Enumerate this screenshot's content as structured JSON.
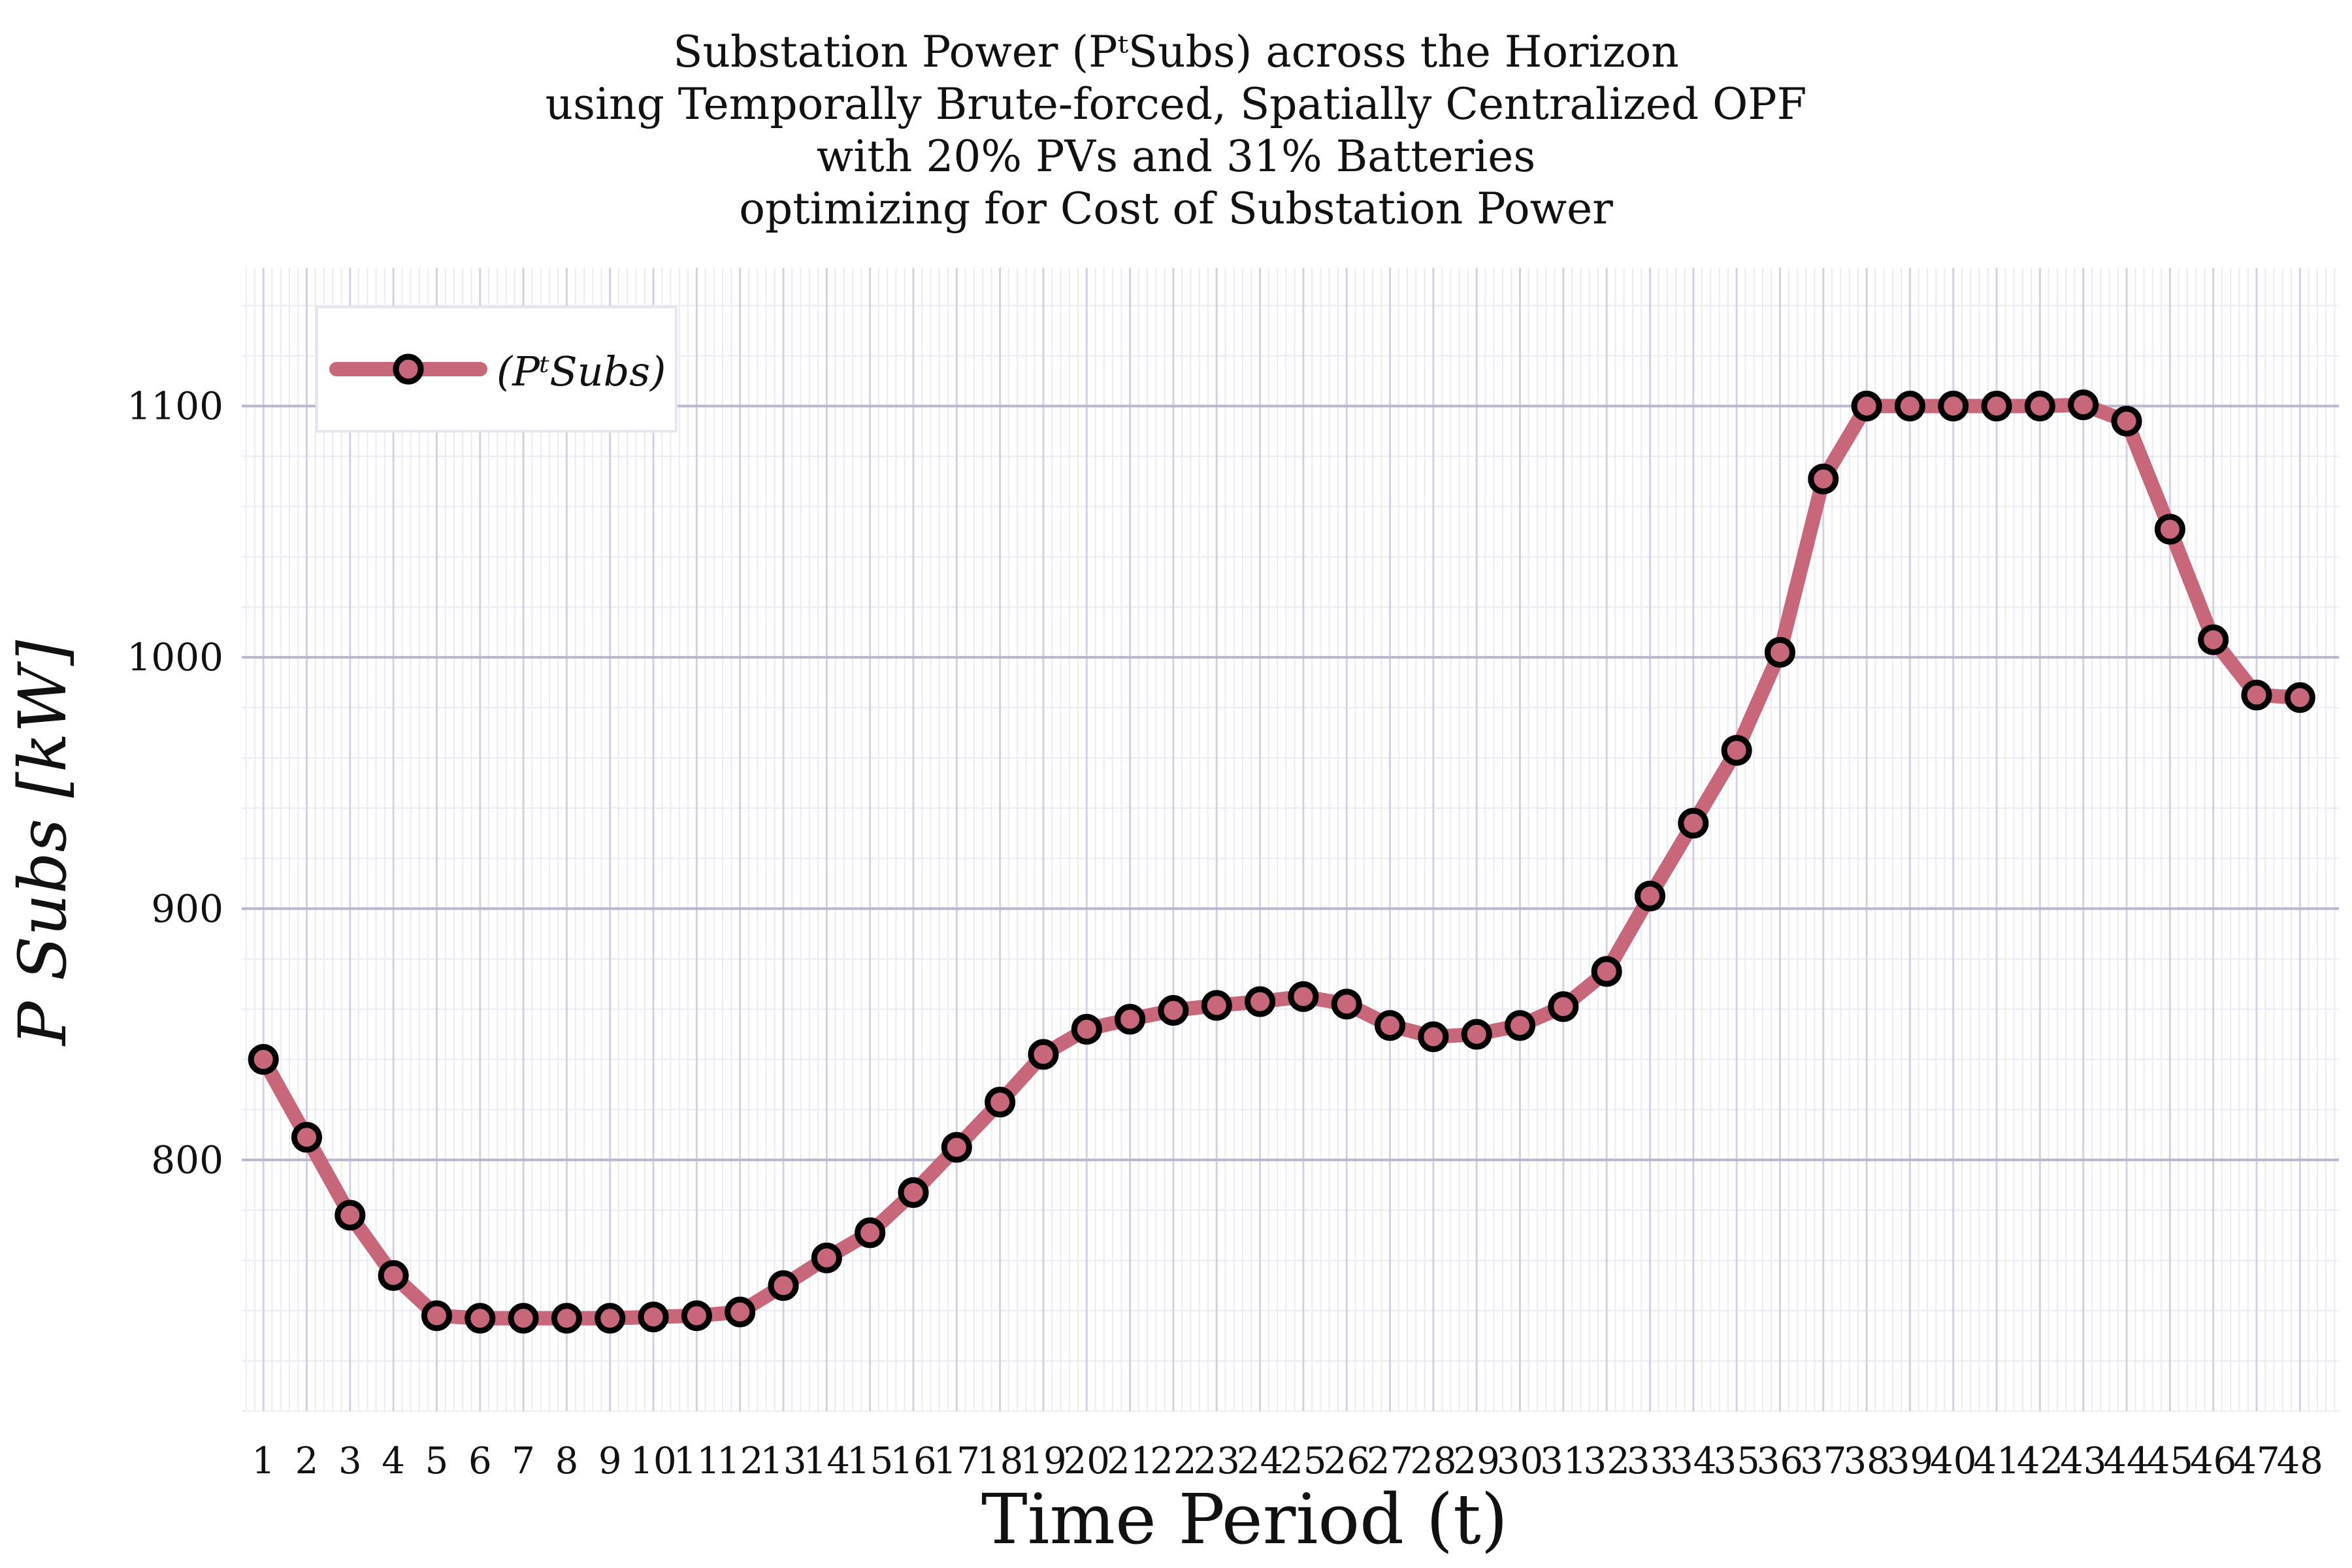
{
  "chart_data": {
    "type": "line",
    "title_lines": [
      "Substation Power (PᵗSubs) across the Horizon",
      "using Temporally Brute-forced, Spatially Centralized OPF",
      "with 20% PVs and 31% Batteries",
      "optimizing for Cost of Substation Power"
    ],
    "xlabel": "Time Period (t)",
    "ylabel": "P Subs [kW]",
    "x": [
      1,
      2,
      3,
      4,
      5,
      6,
      7,
      8,
      9,
      10,
      11,
      12,
      13,
      14,
      15,
      16,
      17,
      18,
      19,
      20,
      21,
      22,
      23,
      24,
      25,
      26,
      27,
      28,
      29,
      30,
      31,
      32,
      33,
      34,
      35,
      36,
      37,
      38,
      39,
      40,
      41,
      42,
      43,
      44,
      45,
      46,
      47,
      48
    ],
    "x_tick_labels": [
      "1",
      "2",
      "3",
      "4",
      "5",
      "6",
      "7",
      "8",
      "9",
      "10",
      "11",
      "12",
      "13",
      "14",
      "15",
      "16",
      "17",
      "18",
      "19",
      "20",
      "21",
      "22",
      "23",
      "24",
      "25",
      "26",
      "27",
      "28",
      "29",
      "30",
      "31",
      "32",
      "33",
      "34",
      "35",
      "36",
      "37",
      "38",
      "39",
      "40",
      "41",
      "42",
      "43",
      "44",
      "45",
      "46",
      "47",
      "48"
    ],
    "y_ticks": [
      800,
      900,
      1000,
      1100
    ],
    "y_tick_labels": [
      "800",
      "900",
      "1000",
      "1100"
    ],
    "ylim": [
      700,
      1155
    ],
    "xlim": [
      0.5,
      48.9
    ],
    "grid": true,
    "legend": {
      "position": "top-left",
      "label": "(PᵗSubs)"
    },
    "series": [
      {
        "name": "(PᵗSubs)",
        "color": "#c8677a",
        "marker_edge_color": "#000000",
        "values": [
          840,
          809,
          778,
          754,
          738,
          737,
          737,
          737,
          737,
          737.5,
          738,
          739.5,
          750,
          761,
          771,
          787,
          805,
          823,
          842,
          852,
          856,
          859.5,
          861.5,
          863,
          865,
          862,
          853.5,
          849,
          850,
          853.5,
          861,
          875,
          905,
          934,
          963,
          1002,
          1071,
          1100,
          1100,
          1100,
          1100,
          1100,
          1100.5,
          1094,
          1051,
          1007,
          985,
          984
        ]
      }
    ]
  }
}
